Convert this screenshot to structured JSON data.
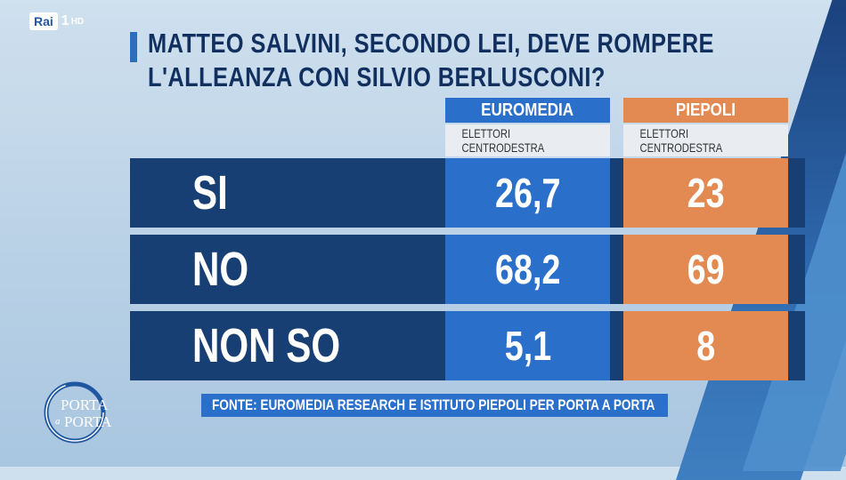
{
  "channel": {
    "brand": "Rai",
    "number": "1",
    "quality": "HD"
  },
  "title": {
    "line1": "MATTEO SALVINI, SECONDO LEI, DEVE ROMPERE",
    "line2": "L'ALLEANZA CON SILVIO BERLUSCONI?"
  },
  "columns": [
    {
      "name": "EUROMEDIA",
      "subtitle": "ELETTORI CENTRODESTRA",
      "color": "#2a6fca"
    },
    {
      "name": "PIEPOLI",
      "subtitle": "ELETTORI CENTRODESTRA",
      "color": "#e28a52"
    }
  ],
  "rows": [
    {
      "label": "SI",
      "euromedia": "26,7",
      "piepoli": "23"
    },
    {
      "label": "NO",
      "euromedia": "68,2",
      "piepoli": "69"
    },
    {
      "label": "NON SO",
      "euromedia": "5,1",
      "piepoli": "8"
    }
  ],
  "source": "FONTE: EUROMEDIA RESEARCH E ISTITUTO PIEPOLI PER PORTA A PORTA",
  "show_logo": {
    "line1": "PORTA",
    "line2": "a",
    "line3": "PORTA"
  },
  "chart_data": {
    "type": "table",
    "title": "MATTEO SALVINI, SECONDO LEI, DEVE ROMPERE L'ALLEANZA CON SILVIO BERLUSCONI?",
    "categories": [
      "SI",
      "NO",
      "NON SO"
    ],
    "series": [
      {
        "name": "EUROMEDIA",
        "values": [
          26.7,
          68.2,
          5.1
        ]
      },
      {
        "name": "PIEPOLI",
        "values": [
          23,
          69,
          8
        ]
      }
    ]
  }
}
